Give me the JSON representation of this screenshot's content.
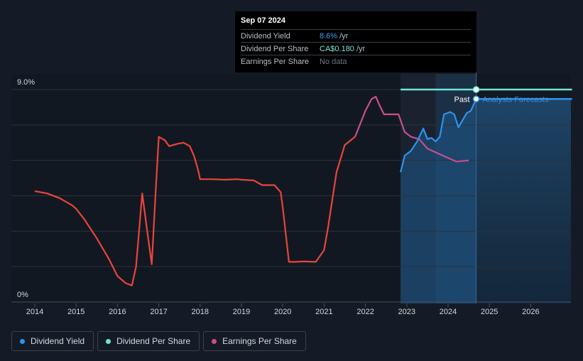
{
  "chart_data": {
    "type": "line",
    "x_ticks": [
      "2014",
      "2015",
      "2016",
      "2017",
      "2018",
      "2019",
      "2020",
      "2021",
      "2022",
      "2023",
      "2024",
      "2025",
      "2026"
    ],
    "y_ticks": [
      "0%",
      "9.0%"
    ],
    "ylim": [
      0,
      9
    ],
    "grid": true,
    "past_label": "Past",
    "forecast_label": "Analysts Forecasts",
    "series": [
      {
        "name": "Earnings Per Share",
        "color_past": "#e8453c",
        "color_recent": "#c94e8e",
        "points": [
          [
            2014.0,
            4.7
          ],
          [
            2014.3,
            4.6
          ],
          [
            2014.6,
            4.4
          ],
          [
            2014.9,
            4.1
          ],
          [
            2015.0,
            3.95
          ],
          [
            2015.2,
            3.5
          ],
          [
            2015.5,
            2.7
          ],
          [
            2015.8,
            1.8
          ],
          [
            2016.0,
            1.1
          ],
          [
            2016.2,
            0.8
          ],
          [
            2016.35,
            0.7
          ],
          [
            2016.45,
            1.5
          ],
          [
            2016.6,
            4.6
          ],
          [
            2016.72,
            3.0
          ],
          [
            2016.83,
            1.6
          ],
          [
            2016.92,
            4.5
          ],
          [
            2017.0,
            7.0
          ],
          [
            2017.15,
            6.85
          ],
          [
            2017.25,
            6.6
          ],
          [
            2017.45,
            6.7
          ],
          [
            2017.6,
            6.75
          ],
          [
            2017.75,
            6.6
          ],
          [
            2017.85,
            6.2
          ],
          [
            2017.95,
            5.6
          ],
          [
            2018.0,
            5.2
          ],
          [
            2018.3,
            5.2
          ],
          [
            2018.6,
            5.18
          ],
          [
            2018.9,
            5.2
          ],
          [
            2019.0,
            5.18
          ],
          [
            2019.3,
            5.15
          ],
          [
            2019.5,
            4.95
          ],
          [
            2019.8,
            4.95
          ],
          [
            2019.95,
            4.65
          ],
          [
            2020.0,
            4.0
          ],
          [
            2020.15,
            1.7
          ],
          [
            2020.3,
            1.7
          ],
          [
            2020.5,
            1.72
          ],
          [
            2020.8,
            1.7
          ],
          [
            2021.0,
            2.2
          ],
          [
            2021.1,
            3.2
          ],
          [
            2021.3,
            5.5
          ],
          [
            2021.5,
            6.65
          ],
          [
            2021.75,
            7.0
          ],
          [
            2022.0,
            8.1
          ],
          [
            2022.15,
            8.6
          ],
          [
            2022.25,
            8.7
          ],
          [
            2022.35,
            8.3
          ],
          [
            2022.45,
            7.95
          ],
          [
            2022.6,
            7.95
          ],
          [
            2022.8,
            7.95
          ],
          [
            2022.95,
            7.2
          ],
          [
            2023.1,
            7.0
          ],
          [
            2023.3,
            6.9
          ],
          [
            2023.5,
            6.5
          ],
          [
            2023.75,
            6.3
          ],
          [
            2024.0,
            6.1
          ],
          [
            2024.2,
            5.95
          ],
          [
            2024.5,
            6.0
          ]
        ]
      },
      {
        "name": "Dividend Yield",
        "color": "#2e93ee",
        "points": [
          [
            2022.85,
            5.5
          ],
          [
            2022.95,
            6.2
          ],
          [
            2023.1,
            6.4
          ],
          [
            2023.25,
            6.8
          ],
          [
            2023.4,
            7.35
          ],
          [
            2023.5,
            6.9
          ],
          [
            2023.6,
            6.95
          ],
          [
            2023.7,
            6.8
          ],
          [
            2023.8,
            7.0
          ],
          [
            2023.9,
            7.95
          ],
          [
            2024.05,
            8.05
          ],
          [
            2024.15,
            7.95
          ],
          [
            2024.25,
            7.4
          ],
          [
            2024.35,
            7.7
          ],
          [
            2024.45,
            8.0
          ],
          [
            2024.55,
            8.1
          ],
          [
            2024.68,
            8.6
          ],
          [
            2025.0,
            8.6
          ],
          [
            2027.0,
            8.6
          ]
        ]
      },
      {
        "name": "Dividend Per Share",
        "color": "#6fe3d6",
        "points": [
          [
            2022.85,
            9.0
          ],
          [
            2027.0,
            9.0
          ]
        ]
      }
    ],
    "highlight_x": 2024.68,
    "legend": [
      "Dividend Yield",
      "Dividend Per Share",
      "Earnings Per Share"
    ]
  },
  "tooltip": {
    "date": "Sep 07 2024",
    "rows": [
      {
        "label": "Dividend Yield",
        "value": "8.6%",
        "unit": "/yr"
      },
      {
        "label": "Dividend Per Share",
        "value": "CA$0.180",
        "unit": "/yr"
      },
      {
        "label": "Earnings Per Share",
        "value": "No data",
        "unit": ""
      }
    ]
  },
  "legend": {
    "items": [
      {
        "label": "Dividend Yield",
        "color": "#2e93ee"
      },
      {
        "label": "Dividend Per Share",
        "color": "#6fe3d6"
      },
      {
        "label": "Earnings Per Share",
        "color": "#c94e8e"
      }
    ]
  }
}
